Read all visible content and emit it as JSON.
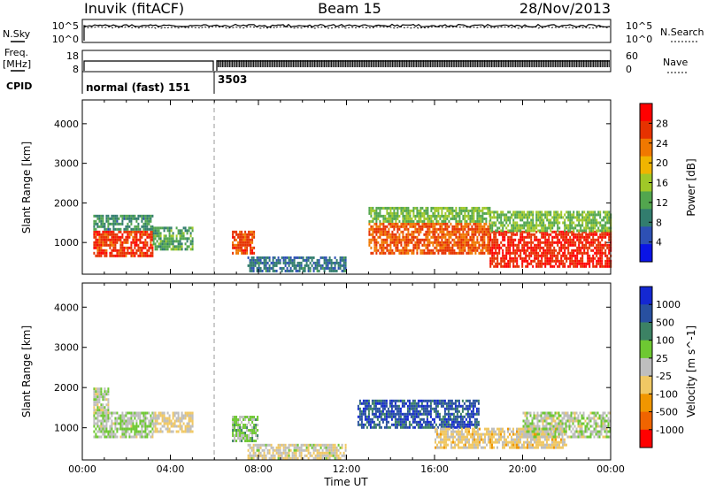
{
  "header": {
    "radar": "Inuvik (fitACF)",
    "beam": "Beam 15",
    "date": "28/Nov/2013"
  },
  "status_panels": {
    "nsky_label": "N.Sky",
    "nsky_ticks": [
      "10^5",
      "10^0"
    ],
    "nsearch_label": "N.Search",
    "nsearch_ticks": [
      "10^5",
      "10^0"
    ],
    "freq_label": "Freq.",
    "freq_unit": "[MHz]",
    "freq_ticks": [
      "18",
      "8"
    ],
    "nave_label": "Nave",
    "nave_ticks": [
      "60",
      "0"
    ],
    "cpid_label": "CPID",
    "cpid_segments": [
      {
        "label": "normal (fast) 151",
        "start_hour": 0
      },
      {
        "label": "3503",
        "start_hour": 6
      }
    ]
  },
  "axes": {
    "xlabel": "Time UT",
    "x_ticks": [
      "00:00",
      "04:00",
      "08:00",
      "12:00",
      "16:00",
      "20:00",
      "00:00"
    ],
    "ylabel": "Slant Range [km]",
    "y_ticks": [
      "4000",
      "3000",
      "2000",
      "1000"
    ]
  },
  "colors": {
    "power": [
      "#0a14e6",
      "#2d50b4",
      "#327d6e",
      "#52a64e",
      "#a0c828",
      "#f0b400",
      "#f07800",
      "#e63200",
      "#ff0000"
    ],
    "velocity": [
      "#1428d2",
      "#2850a0",
      "#3c8264",
      "#6ec832",
      "#bebebe",
      "#f0c864",
      "#f09600",
      "#f06400",
      "#ff0000"
    ]
  },
  "chart_data": [
    {
      "type": "heatmap",
      "name": "power",
      "xlim": [
        0,
        24
      ],
      "ylim": [
        200,
        4600
      ],
      "colorbar": {
        "label": "Power [dB]",
        "ticks": [
          "28",
          "24",
          "20",
          "16",
          "12",
          "8",
          "4"
        ],
        "range": [
          0,
          32
        ]
      },
      "regions": [
        {
          "x": [
            0.5,
            3.2
          ],
          "y": [
            650,
            1300
          ],
          "value": 27
        },
        {
          "x": [
            0.5,
            3.2
          ],
          "y": [
            1300,
            1700
          ],
          "value": 10
        },
        {
          "x": [
            3.2,
            5.0
          ],
          "y": [
            800,
            1400
          ],
          "value": 12
        },
        {
          "x": [
            6.8,
            7.8
          ],
          "y": [
            700,
            1300
          ],
          "value": 26
        },
        {
          "x": [
            13.0,
            18.5
          ],
          "y": [
            700,
            1500
          ],
          "value": 25
        },
        {
          "x": [
            13.0,
            18.5
          ],
          "y": [
            1500,
            1900
          ],
          "value": 14
        },
        {
          "x": [
            18.5,
            24.0
          ],
          "y": [
            400,
            1300
          ],
          "value": 28
        },
        {
          "x": [
            18.5,
            24.0
          ],
          "y": [
            1300,
            1800
          ],
          "value": 14
        },
        {
          "x": [
            7.5,
            12.0
          ],
          "y": [
            250,
            650
          ],
          "value": 8
        }
      ]
    },
    {
      "type": "heatmap",
      "name": "velocity",
      "xlim": [
        0,
        24
      ],
      "ylim": [
        200,
        4600
      ],
      "colorbar": {
        "label": "Velocity [m s^-1]",
        "ticks": [
          "1000",
          "500",
          "100",
          "25",
          "-25",
          "-100",
          "-500",
          "-1000"
        ],
        "range": [
          -1200,
          1200
        ]
      },
      "regions": [
        {
          "x": [
            0.5,
            3.2
          ],
          "y": [
            750,
            1400
          ],
          "value": 100
        },
        {
          "x": [
            0.5,
            1.2
          ],
          "y": [
            1400,
            2000
          ],
          "value": 10
        },
        {
          "x": [
            3.2,
            5.0
          ],
          "y": [
            900,
            1400
          ],
          "value": -150
        },
        {
          "x": [
            6.8,
            8.0
          ],
          "y": [
            700,
            1300
          ],
          "value": 200
        },
        {
          "x": [
            12.5,
            18.0
          ],
          "y": [
            1000,
            1700
          ],
          "value": 800
        },
        {
          "x": [
            16.0,
            22.0
          ],
          "y": [
            500,
            1000
          ],
          "value": -200
        },
        {
          "x": [
            20.0,
            24.0
          ],
          "y": [
            800,
            1400
          ],
          "value": 50
        },
        {
          "x": [
            7.5,
            12.0
          ],
          "y": [
            250,
            600
          ],
          "value": -80
        }
      ]
    }
  ]
}
